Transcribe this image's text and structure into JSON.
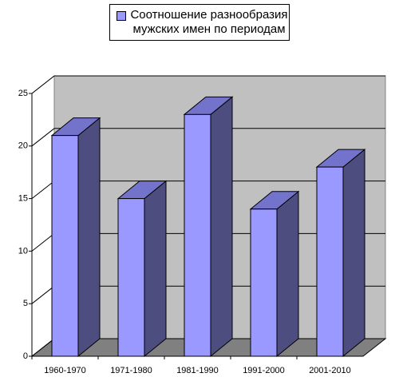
{
  "chart_data": {
    "type": "bar3d",
    "categories": [
      "1960-1970",
      "1971-1980",
      "1981-1990",
      "1991-2000",
      "2001-2010"
    ],
    "series": [
      {
        "name": "Соотношение разнообразия мужских имен по периодам",
        "color": "#9999ff",
        "values": [
          21,
          15,
          23,
          14,
          18
        ]
      }
    ],
    "ylim": [
      0,
      25
    ],
    "yticks": [
      0,
      5,
      10,
      15,
      20,
      25
    ],
    "grid": true,
    "legend": "top"
  }
}
